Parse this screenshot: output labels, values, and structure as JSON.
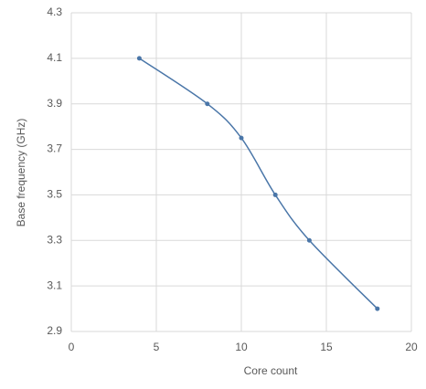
{
  "chart_data": {
    "type": "line",
    "smooth": true,
    "x_label": "Core count",
    "y_label": "Base frequency (GHz)",
    "x": [
      4,
      8,
      10,
      12,
      14,
      18
    ],
    "series": [
      {
        "color": "#4a76a8",
        "values": [
          4.1,
          3.9,
          3.75,
          3.5,
          3.3,
          3.0
        ]
      }
    ],
    "xlim": [
      0,
      20
    ],
    "xticks": [
      0,
      5,
      10,
      15,
      20
    ],
    "ylim": [
      2.9,
      4.3
    ],
    "yticks": [
      2.9,
      3.1,
      3.3,
      3.5,
      3.7,
      3.9,
      4.1,
      4.3
    ],
    "grid": true
  }
}
